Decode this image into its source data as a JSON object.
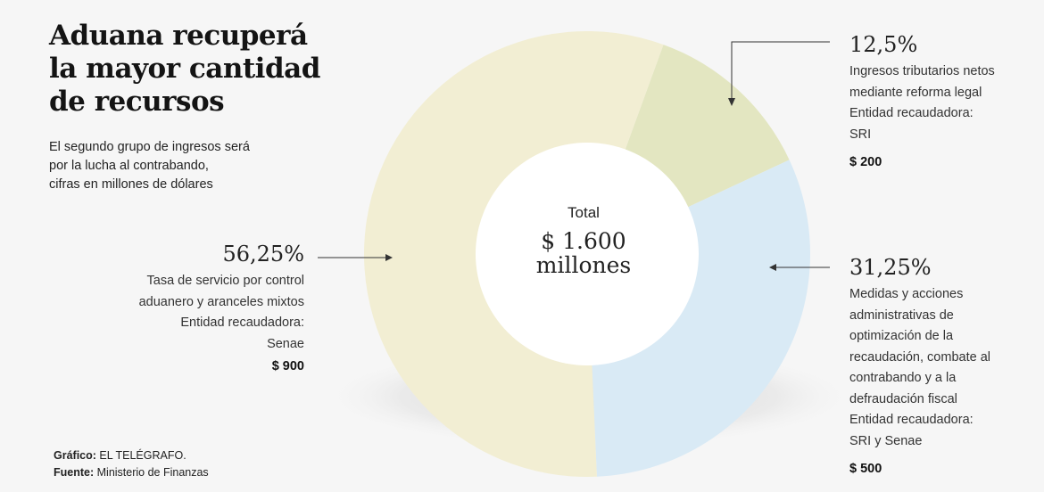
{
  "title_lines": [
    "Aduana recuperá",
    "la mayor cantidad",
    "de recursos"
  ],
  "subtitle_lines": [
    "El segundo grupo de ingresos será",
    "por la lucha al contrabando,",
    "cifras en millones de dólares"
  ],
  "chart_data": {
    "type": "pie",
    "center_label": "Total",
    "center_value_lines": [
      "$ 1.600",
      "millones"
    ],
    "slices": [
      {
        "percent_label": "12,5%",
        "value": 200,
        "amount_label": "$ 200",
        "description_lines": [
          "Ingresos tributarios netos",
          "mediante reforma legal",
          "Entidad recaudadora:",
          "SRI"
        ],
        "color": "#e3e6c1"
      },
      {
        "percent_label": "31,25%",
        "value": 500,
        "amount_label": "$ 500",
        "description_lines": [
          "Medidas y acciones",
          "administrativas de",
          "optimización de la",
          "recaudación, combate al",
          "contrabando y a la",
          "defraudación fiscal",
          "Entidad recaudadora:",
          "SRI y Senae"
        ],
        "color": "#d9eaf5"
      },
      {
        "percent_label": "56,25%",
        "value": 900,
        "amount_label": "$ 900",
        "description_lines": [
          "Tasa de servicio por control",
          "aduanero y aranceles mixtos",
          "Entidad recaudadora:",
          "Senae"
        ],
        "color": "#f2eed3"
      }
    ]
  },
  "credits": {
    "graphic_label": "Gráfico:",
    "graphic_value": "EL TELÉGRAFO.",
    "source_label": "Fuente:",
    "source_value": "Ministerio de Finanzas"
  }
}
